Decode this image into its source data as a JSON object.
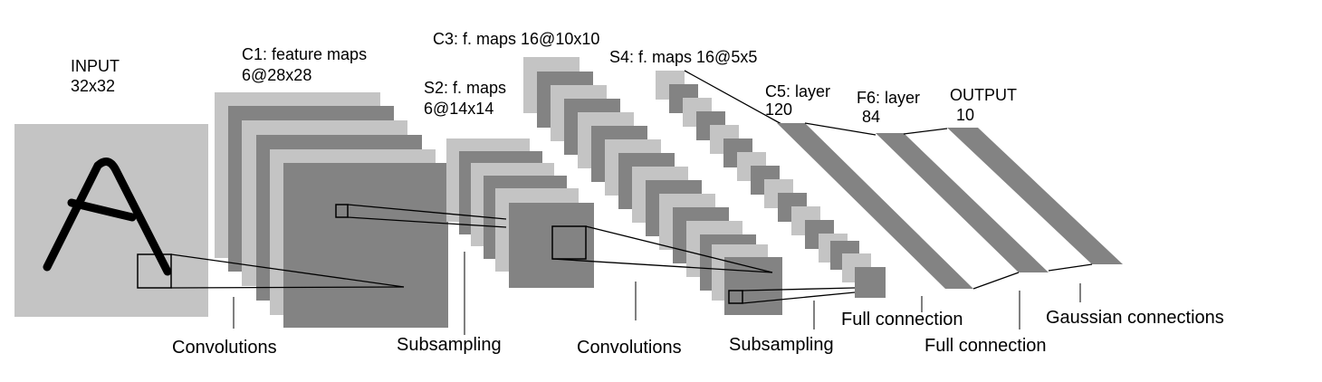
{
  "colors": {
    "light": "#c4c4c4",
    "dark": "#838383",
    "line": "#000000",
    "background": "#ffffff"
  },
  "layers": {
    "input": {
      "name": "INPUT",
      "size": "32x32"
    },
    "c1": {
      "name": "C1: feature maps",
      "size": "6@28x28"
    },
    "s2": {
      "name": "S2: f. maps",
      "size": "6@14x14"
    },
    "c3": {
      "name": "C3: f. maps 16@10x10"
    },
    "s4": {
      "name": "S4: f. maps 16@5x5"
    },
    "c5": {
      "name": "C5: layer",
      "size": "120"
    },
    "f6": {
      "name": "F6: layer",
      "size": "84"
    },
    "output": {
      "name": "OUTPUT",
      "size": "10"
    }
  },
  "operations": {
    "conv1": "Convolutions",
    "sub1": "Subsampling",
    "conv2": "Convolutions",
    "sub2": "Subsampling",
    "full1": "Full connection",
    "full2": "Full connection",
    "gauss": "Gaussian connections"
  }
}
